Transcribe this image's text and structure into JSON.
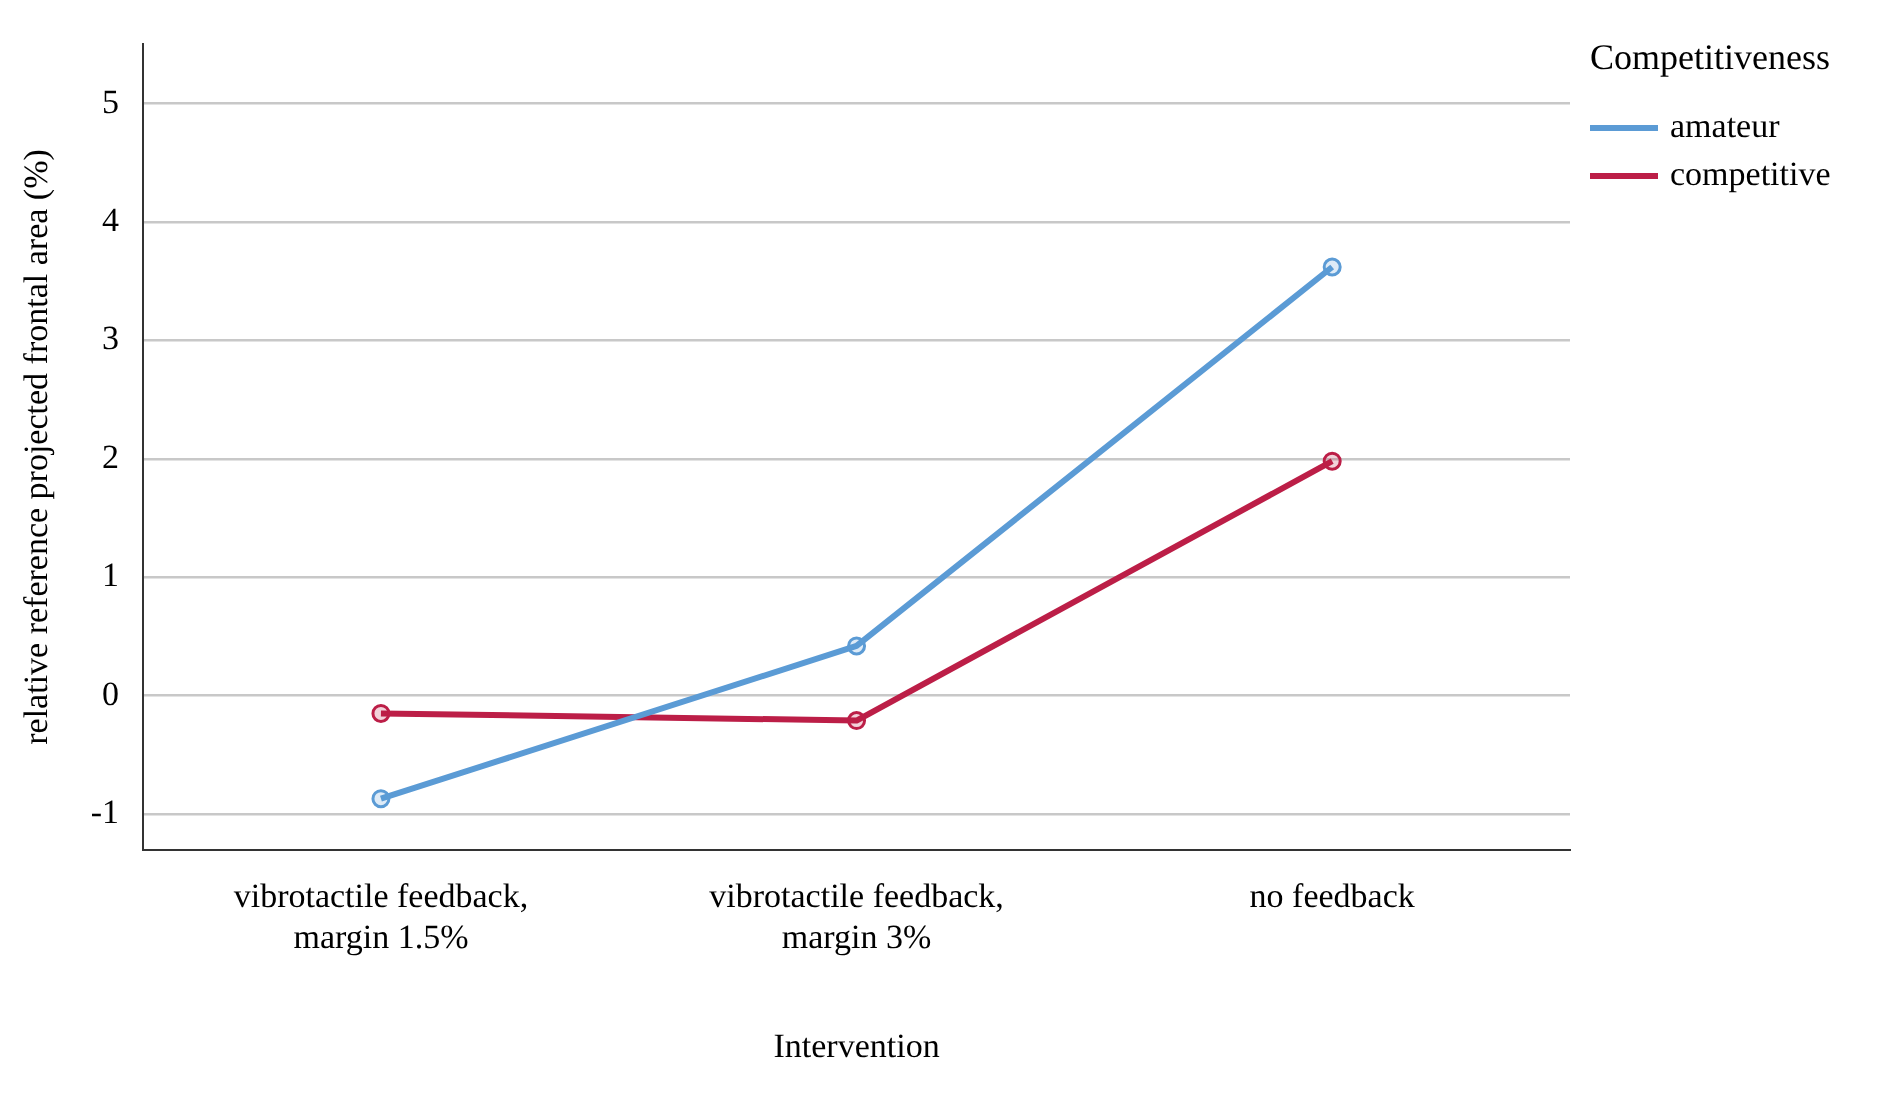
{
  "chart_data": {
    "type": "line",
    "xlabel": "Intervention",
    "ylabel": "relative reference projected frontal area (%)",
    "legend_title": "Competitiveness",
    "categories": [
      "vibrotactile feedback, margin 1.5%",
      "vibrotactile feedback, margin 3%",
      "no feedback"
    ],
    "series": [
      {
        "name": "amateur",
        "color": "#5b9bd5",
        "values": [
          -0.87,
          0.42,
          3.62
        ]
      },
      {
        "name": "competitive",
        "color": "#bc1e47",
        "values": [
          -0.15,
          -0.21,
          1.98
        ]
      }
    ],
    "ylim": [
      -1.3,
      5.5
    ],
    "yticks": [
      -1,
      0,
      1,
      2,
      3,
      4,
      5
    ],
    "grid": "y",
    "legend": "top right",
    "marker": "circle",
    "line_style": "solid"
  }
}
